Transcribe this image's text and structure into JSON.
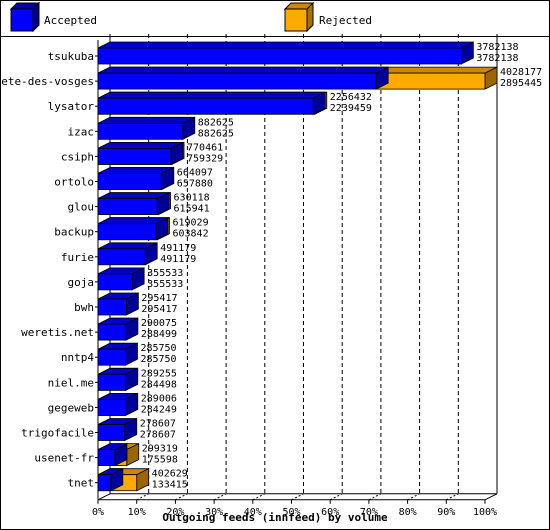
{
  "chart_data": {
    "type": "bar",
    "title": "",
    "xlabel": "Outgoing feeds (innfeed) by volume",
    "ylabel": "",
    "xlim": [
      0,
      100
    ],
    "x_ticks": [
      "0%",
      "10%",
      "20%",
      "30%",
      "40%",
      "50%",
      "60%",
      "70%",
      "80%",
      "90%",
      "100%"
    ],
    "legend_position": "top",
    "grid": true,
    "categories": [
      "tsukuba",
      "bete-des-vosges",
      "lysator",
      "izac",
      "csiph",
      "ortolo",
      "glou",
      "backup",
      "furie",
      "goja",
      "bwh",
      "weretis.net",
      "nntp4",
      "niel.me",
      "gegeweb",
      "trigofacile",
      "usenet-fr",
      "tnet"
    ],
    "series": [
      {
        "name": "Accepted",
        "color": "#0000ff",
        "values": [
          3782138,
          2895445,
          2239459,
          882625,
          759329,
          657880,
          615941,
          603842,
          491179,
          355533,
          295417,
          288499,
          285750,
          284498,
          284249,
          278607,
          175598,
          133415
        ]
      },
      {
        "name": "Rejected",
        "color": "#ffaa00",
        "values": [
          3782138,
          4028177,
          2256432,
          882625,
          770461,
          664097,
          630118,
          619029,
          491179,
          355533,
          295417,
          290075,
          285750,
          289255,
          289006,
          278607,
          299319,
          402629
        ]
      }
    ]
  }
}
